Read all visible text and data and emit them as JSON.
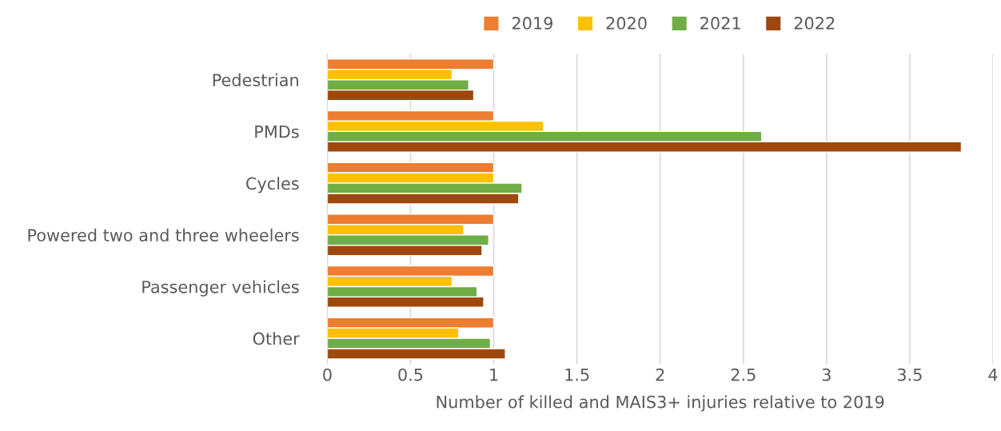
{
  "chart_data": {
    "type": "bar",
    "orientation": "horizontal",
    "xlabel": "Number of killed and MAIS3+ injuries relative to 2019",
    "categories": [
      "Pedestrian",
      "PMDs",
      "Cycles",
      "Powered two and three wheelers",
      "Passenger vehicles",
      "Other"
    ],
    "series": [
      {
        "name": "2019",
        "color": "#ed7d31",
        "values": [
          1,
          1,
          1,
          1,
          1,
          1
        ]
      },
      {
        "name": "2020",
        "color": "#ffc000",
        "values": [
          0.75,
          1.3,
          1.0,
          0.82,
          0.75,
          0.79
        ]
      },
      {
        "name": "2021",
        "color": "#70ad47",
        "values": [
          0.85,
          2.61,
          1.17,
          0.97,
          0.9,
          0.98
        ]
      },
      {
        "name": "2022",
        "color": "#9e480e",
        "values": [
          0.88,
          3.81,
          1.15,
          0.93,
          0.94,
          1.07
        ]
      }
    ],
    "xlim": [
      0,
      4
    ],
    "xticks": [
      0,
      0.5,
      1,
      1.5,
      2,
      2.5,
      3,
      3.5,
      4
    ],
    "grid": "x",
    "legend": "top"
  }
}
